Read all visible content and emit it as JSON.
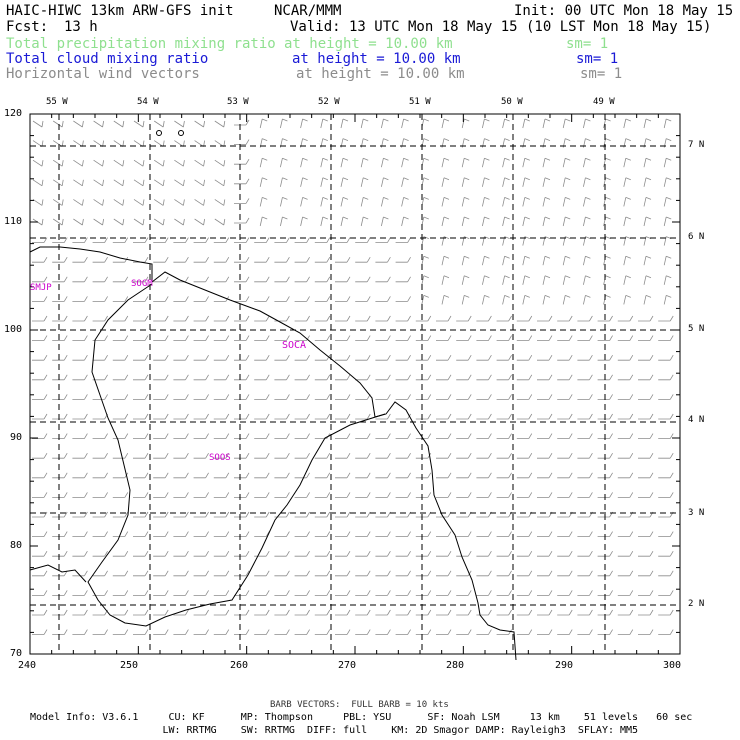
{
  "header": {
    "model": "HAIC-HIWC 13km ARW-GFS init",
    "org": "NCAR/MMM",
    "init": "Init: 00 UTC Mon 18 May 15",
    "fcst_label": "Fcst:",
    "fcst_value": "13 h",
    "valid": "Valid: 13 UTC Mon 18 May 15 (10 LST Mon 18 May 15)"
  },
  "fields": [
    {
      "name": "Total precipitation mixing ratio",
      "height": "at height = 10.00 km",
      "sm": "sm= 1",
      "color": "#8fe08f"
    },
    {
      "name": "Total cloud mixing ratio",
      "height": "at height = 10.00 km",
      "sm": "sm= 1",
      "color": "#1a1ad6"
    },
    {
      "name": "Horizontal wind vectors",
      "height": "at height = 10.00 km",
      "sm": "sm= 1",
      "color": "#8c8c8c"
    }
  ],
  "axes": {
    "x_ticks": [
      "240",
      "250",
      "260",
      "270",
      "280",
      "290",
      "300"
    ],
    "y_ticks": [
      "70",
      "80",
      "90",
      "100",
      "110",
      "120"
    ],
    "lon_labels": [
      "55 W",
      "54 W",
      "53 W",
      "52 W",
      "51 W",
      "50 W",
      "49 W"
    ],
    "lat_labels": [
      "2 N",
      "3 N",
      "4 N",
      "5 N",
      "6 N",
      "7 N"
    ]
  },
  "stations": [
    "SMJP",
    "SOGM",
    "SOCA",
    "SOOS"
  ],
  "footer": {
    "barb_note": "BARB VECTORS:  FULL BARB = 10 kts",
    "line1": "Model Info: V3.6.1     CU: KF      MP: Thompson     PBL: YSU      SF: Noah LSM     13 km    51 levels   60 sec",
    "line2": "                      LW: RRTMG    SW: RRTMG  DIFF: full    KM: 2D Smagor DAMP: Rayleigh3  SFLAY: MM5"
  },
  "colors": {
    "station": "#cc00cc",
    "barb": "#8c8c8c",
    "frame": "#000000"
  }
}
